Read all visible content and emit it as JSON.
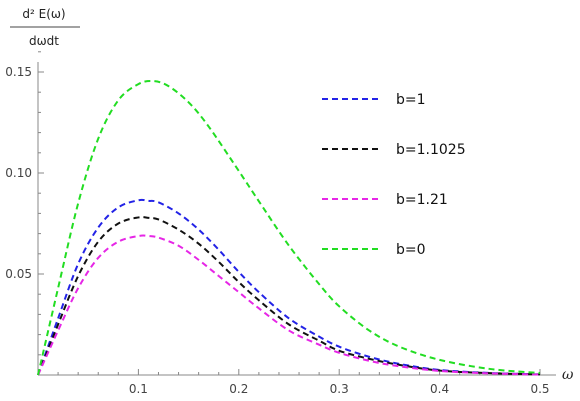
{
  "chart_data": {
    "type": "line",
    "title": "",
    "xlabel": "ω",
    "ylabel_numerator": "d² E(ω)",
    "ylabel_denominator": "dωdt",
    "xlim": [
      0,
      0.5
    ],
    "ylim": [
      0,
      0.15
    ],
    "x_ticks": [
      {
        "value": 0.1,
        "label": "0.1"
      },
      {
        "value": 0.2,
        "label": "0.2"
      },
      {
        "value": 0.3,
        "label": "0.3"
      },
      {
        "value": 0.4,
        "label": "0.4"
      },
      {
        "value": 0.5,
        "label": "0.5"
      }
    ],
    "y_ticks": [
      {
        "value": 0.05,
        "label": "0.05"
      },
      {
        "value": 0.1,
        "label": "0.10"
      },
      {
        "value": 0.15,
        "label": "0.15"
      }
    ],
    "legend_position": "top-right",
    "line_style": "dashed",
    "grid": false,
    "series": [
      {
        "name": "b=1",
        "color": "#2323e6",
        "x": [
          0,
          0.02,
          0.04,
          0.06,
          0.08,
          0.1,
          0.11,
          0.12,
          0.14,
          0.16,
          0.18,
          0.2,
          0.22,
          0.25,
          0.28,
          0.3,
          0.33,
          0.36,
          0.4,
          0.45,
          0.5
        ],
        "y": [
          0,
          0.028,
          0.055,
          0.073,
          0.083,
          0.0865,
          0.0862,
          0.0855,
          0.08,
          0.072,
          0.062,
          0.051,
          0.041,
          0.028,
          0.019,
          0.014,
          0.009,
          0.0055,
          0.0025,
          0.001,
          0.0003
        ]
      },
      {
        "name": "b=1.1025",
        "color": "#111111",
        "x": [
          0,
          0.02,
          0.04,
          0.06,
          0.08,
          0.1,
          0.11,
          0.12,
          0.14,
          0.16,
          0.18,
          0.2,
          0.22,
          0.25,
          0.28,
          0.3,
          0.33,
          0.36,
          0.4,
          0.45,
          0.5
        ],
        "y": [
          0,
          0.025,
          0.049,
          0.066,
          0.075,
          0.078,
          0.0778,
          0.077,
          0.072,
          0.065,
          0.056,
          0.046,
          0.037,
          0.025,
          0.017,
          0.012,
          0.008,
          0.005,
          0.0022,
          0.0009,
          0.0003
        ]
      },
      {
        "name": "b=1.21",
        "color": "#e626e6",
        "x": [
          0,
          0.02,
          0.04,
          0.06,
          0.08,
          0.1,
          0.11,
          0.12,
          0.14,
          0.16,
          0.18,
          0.2,
          0.22,
          0.25,
          0.28,
          0.3,
          0.33,
          0.36,
          0.4,
          0.45,
          0.5
        ],
        "y": [
          0,
          0.022,
          0.043,
          0.058,
          0.066,
          0.0688,
          0.0688,
          0.068,
          0.064,
          0.057,
          0.049,
          0.041,
          0.033,
          0.022,
          0.015,
          0.011,
          0.007,
          0.0043,
          0.002,
          0.0008,
          0.0002
        ]
      },
      {
        "name": "b=0",
        "color": "#22dd22",
        "x": [
          0,
          0.02,
          0.04,
          0.06,
          0.08,
          0.1,
          0.115,
          0.13,
          0.15,
          0.17,
          0.2,
          0.22,
          0.25,
          0.28,
          0.3,
          0.33,
          0.36,
          0.4,
          0.45,
          0.5
        ],
        "y": [
          0,
          0.043,
          0.085,
          0.117,
          0.136,
          0.144,
          0.1455,
          0.143,
          0.135,
          0.123,
          0.101,
          0.086,
          0.064,
          0.045,
          0.034,
          0.022,
          0.014,
          0.0075,
          0.003,
          0.001
        ]
      }
    ]
  }
}
